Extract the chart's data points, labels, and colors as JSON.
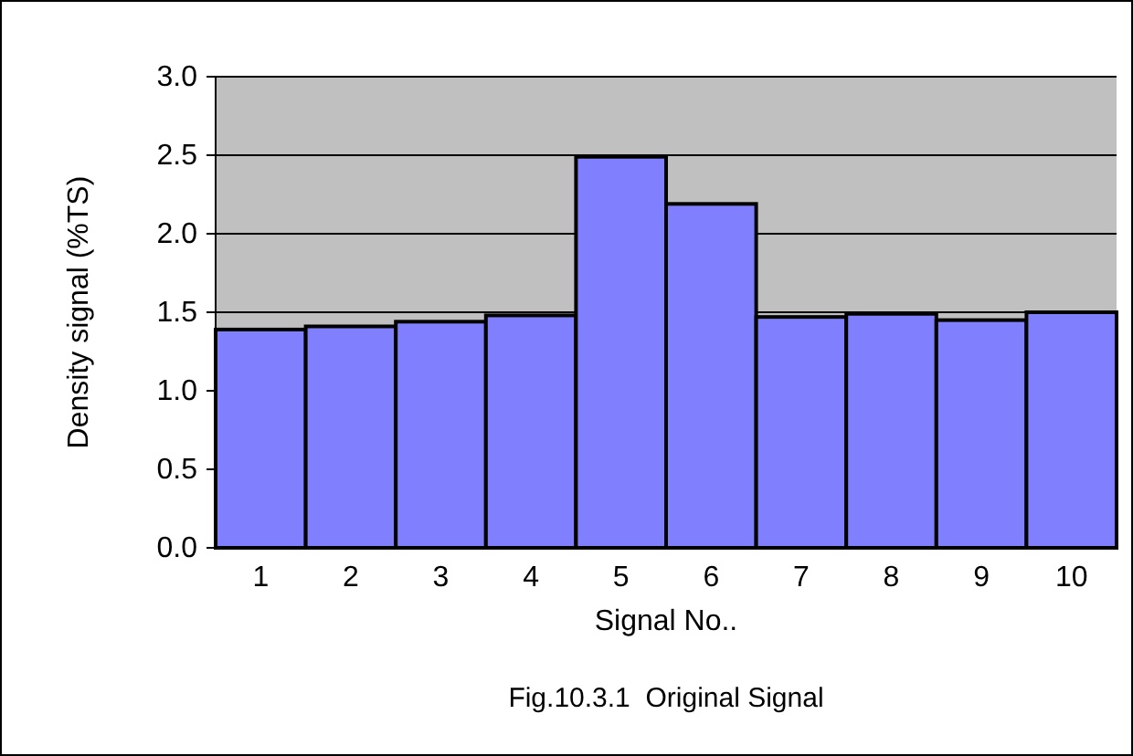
{
  "chart_data": {
    "type": "bar",
    "title": "Fig.10.3.1  Original Signal",
    "xlabel": "Signal No..",
    "ylabel": "Density signal (%TS)",
    "categories": [
      "1",
      "2",
      "3",
      "4",
      "5",
      "6",
      "7",
      "8",
      "9",
      "10"
    ],
    "values": [
      1.39,
      1.41,
      1.44,
      1.48,
      2.49,
      2.19,
      1.47,
      1.49,
      1.45,
      1.5
    ],
    "color": "#8080ff",
    "ylim": [
      0,
      3
    ],
    "yticks": [
      {
        "value": 0,
        "label": "0.0"
      },
      {
        "value": 0.5,
        "label": "0.5"
      },
      {
        "value": 1,
        "label": "1.0"
      },
      {
        "value": 1.5,
        "label": "1.5"
      },
      {
        "value": 2,
        "label": "2.0"
      },
      {
        "value": 2.5,
        "label": "2.5"
      },
      {
        "value": 3,
        "label": "3.0"
      }
    ],
    "grid": "y"
  }
}
